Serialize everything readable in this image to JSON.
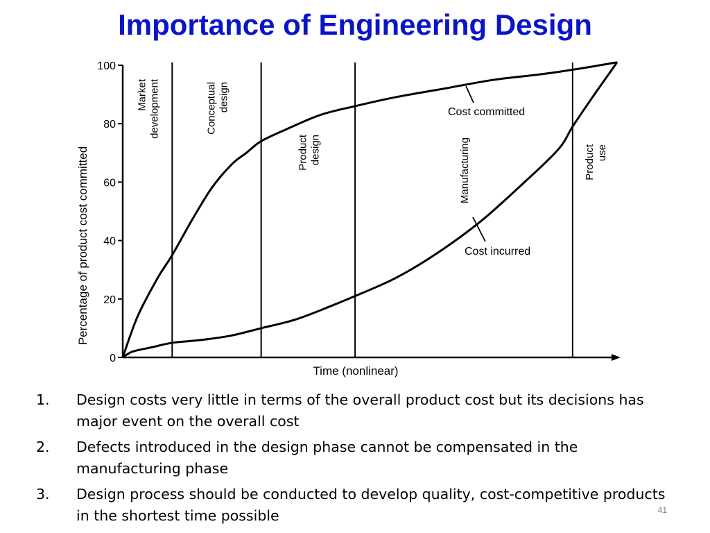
{
  "slide": {
    "title": "Importance of Engineering Design",
    "number": "41"
  },
  "points": [
    {
      "num": "1.",
      "text": "Design costs very little in terms of the overall product cost but its decisions has major event on the overall cost"
    },
    {
      "num": "2.",
      "text": "Defects introduced in the design phase cannot be compensated in the manufacturing phase"
    },
    {
      "num": "3.",
      "text": "Design process should be conducted to develop quality, cost-competitive products in the shortest time possible"
    }
  ],
  "chart_data": {
    "type": "line",
    "xlabel": "Time (nonlinear)",
    "ylabel": "Percentage of product cost committed",
    "ylim": [
      0,
      100
    ],
    "xlim": [
      0,
      100
    ],
    "yticks": [
      0,
      20,
      40,
      60,
      80,
      100
    ],
    "phases": [
      {
        "label": "Market development",
        "boundary": 10
      },
      {
        "label": "Conceptual design",
        "boundary": 28
      },
      {
        "label": "Product design",
        "boundary": 47
      },
      {
        "label": "Manufacturing",
        "boundary": 91
      },
      {
        "label": "Product use",
        "boundary": 100
      }
    ],
    "series": [
      {
        "name": "Cost committed",
        "x": [
          0,
          3,
          7,
          10,
          14,
          18,
          22,
          25,
          28,
          33,
          40,
          47,
          55,
          65,
          75,
          85,
          93,
          100
        ],
        "values": [
          0,
          14,
          27,
          35,
          47,
          58,
          66,
          70,
          74,
          78,
          83,
          86,
          89,
          92,
          95,
          97,
          99,
          101
        ]
      },
      {
        "name": "Cost incurred",
        "x": [
          0,
          2,
          6,
          10,
          16,
          22,
          28,
          35,
          42,
          47,
          55,
          63,
          72,
          80,
          88,
          91,
          95,
          100
        ],
        "values": [
          0,
          2,
          3.5,
          5,
          6,
          7.5,
          10,
          13,
          17.5,
          21,
          27,
          35,
          46,
          58,
          71,
          79,
          89,
          101
        ]
      }
    ]
  }
}
